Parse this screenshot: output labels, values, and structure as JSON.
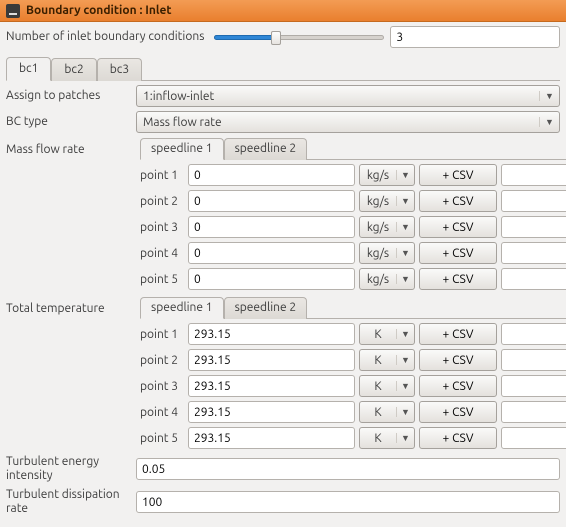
{
  "titlebar": {
    "title": "Boundary condition : Inlet"
  },
  "count": {
    "label": "Number of inlet boundary conditions",
    "value": "3",
    "slider_fill_pct": 38,
    "thumb_pct": 36
  },
  "bc_tabs": {
    "items": [
      "bc1",
      "bc2",
      "bc3"
    ],
    "active_index": 0
  },
  "assign": {
    "label": "Assign to patches",
    "value": "1:inflow-inlet"
  },
  "bctype": {
    "label": "BC type",
    "value": "Mass flow rate"
  },
  "mfr": {
    "label": "Mass flow rate",
    "speedline_tabs": [
      "speedline 1",
      "speedline 2"
    ],
    "active_index": 0,
    "points": [
      {
        "label": "point 1",
        "value": "0",
        "unit": "kg/s",
        "csv": "+ CSV",
        "tail": ""
      },
      {
        "label": "point 2",
        "value": "0",
        "unit": "kg/s",
        "csv": "+ CSV",
        "tail": ""
      },
      {
        "label": "point 3",
        "value": "0",
        "unit": "kg/s",
        "csv": "+ CSV",
        "tail": ""
      },
      {
        "label": "point 4",
        "value": "0",
        "unit": "kg/s",
        "csv": "+ CSV",
        "tail": ""
      },
      {
        "label": "point 5",
        "value": "0",
        "unit": "kg/s",
        "csv": "+ CSV",
        "tail": ""
      }
    ]
  },
  "ttemp": {
    "label": "Total temperature",
    "speedline_tabs": [
      "speedline 1",
      "speedline 2"
    ],
    "active_index": 0,
    "points": [
      {
        "label": "point 1",
        "value": "293.15",
        "unit": "K",
        "csv": "+ CSV",
        "tail": ""
      },
      {
        "label": "point 2",
        "value": "293.15",
        "unit": "K",
        "csv": "+ CSV",
        "tail": ""
      },
      {
        "label": "point 3",
        "value": "293.15",
        "unit": "K",
        "csv": "+ CSV",
        "tail": ""
      },
      {
        "label": "point 4",
        "value": "293.15",
        "unit": "K",
        "csv": "+ CSV",
        "tail": ""
      },
      {
        "label": "point 5",
        "value": "293.15",
        "unit": "K",
        "csv": "+ CSV",
        "tail": ""
      }
    ]
  },
  "tei": {
    "label": "Turbulent energy intensity",
    "value": "0.05"
  },
  "tdr": {
    "label": "Turbulent dissipation rate",
    "value": "100"
  },
  "colors": {
    "accent": "#e97f2e",
    "slider_fill": "#2f87d6"
  }
}
